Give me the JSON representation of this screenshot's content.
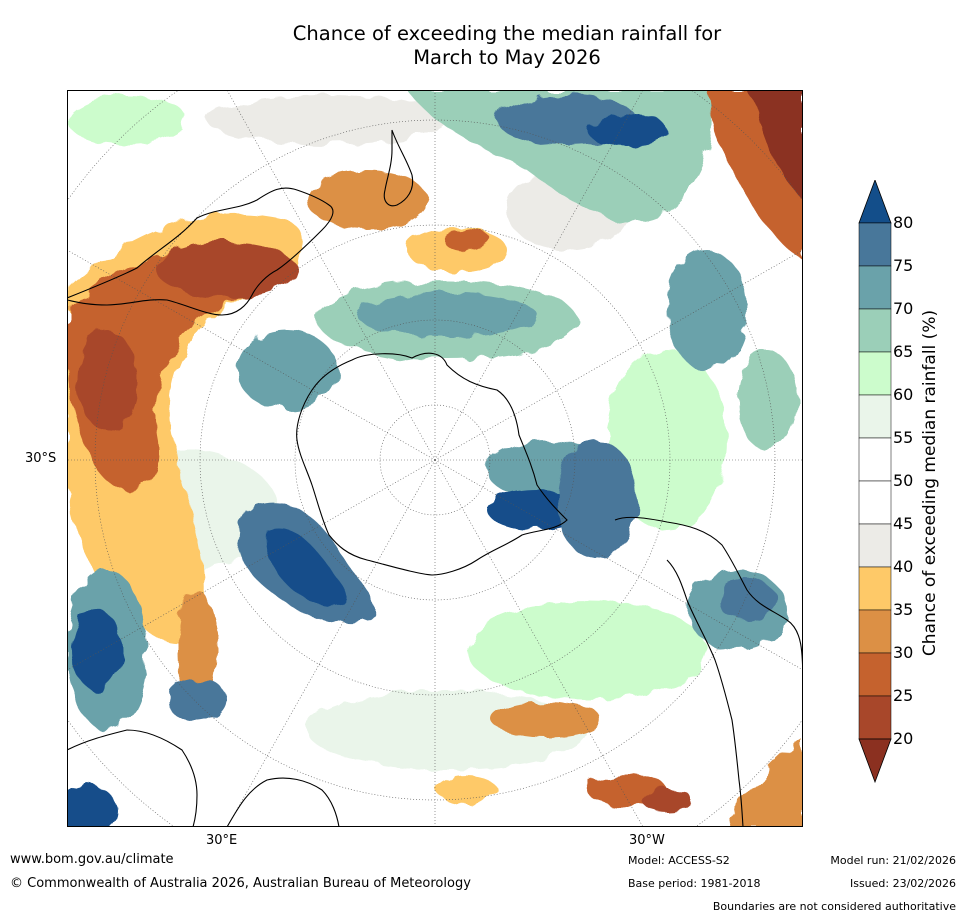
{
  "title_line1": "Chance of exceeding the median rainfall for",
  "title_line2": "March to May 2026",
  "axis_labels": {
    "lat": "30°S",
    "lon_east": "30°E",
    "lon_west": "30°W"
  },
  "colorbar": {
    "title": "Chance of exceeding median rainfall (%)",
    "ticks": [
      "80",
      "75",
      "70",
      "65",
      "60",
      "55",
      "50",
      "45",
      "40",
      "35",
      "30",
      "25",
      "20"
    ],
    "colors": [
      "#134e8a",
      "#48779a",
      "#6aa2aa",
      "#9bcfb8",
      "#ccfccc",
      "#eaf5ea",
      "#ffffff",
      "#ffffff",
      "#ecebe7",
      "#fec968",
      "#dc9045",
      "#c5622e",
      "#a8472a",
      "#8b3020"
    ]
  },
  "footer": {
    "url": "www.bom.gov.au/climate",
    "copyright": "© Commonwealth of Australia 2026, Australian Bureau of Meteorology",
    "model": "Model: ACCESS-S2",
    "base_period": "Base period: 1981-2018",
    "model_run": "Model run: 21/02/2026",
    "issued": "Issued: 23/02/2026",
    "disclaimer": "Boundaries are not considered authoritative"
  }
}
